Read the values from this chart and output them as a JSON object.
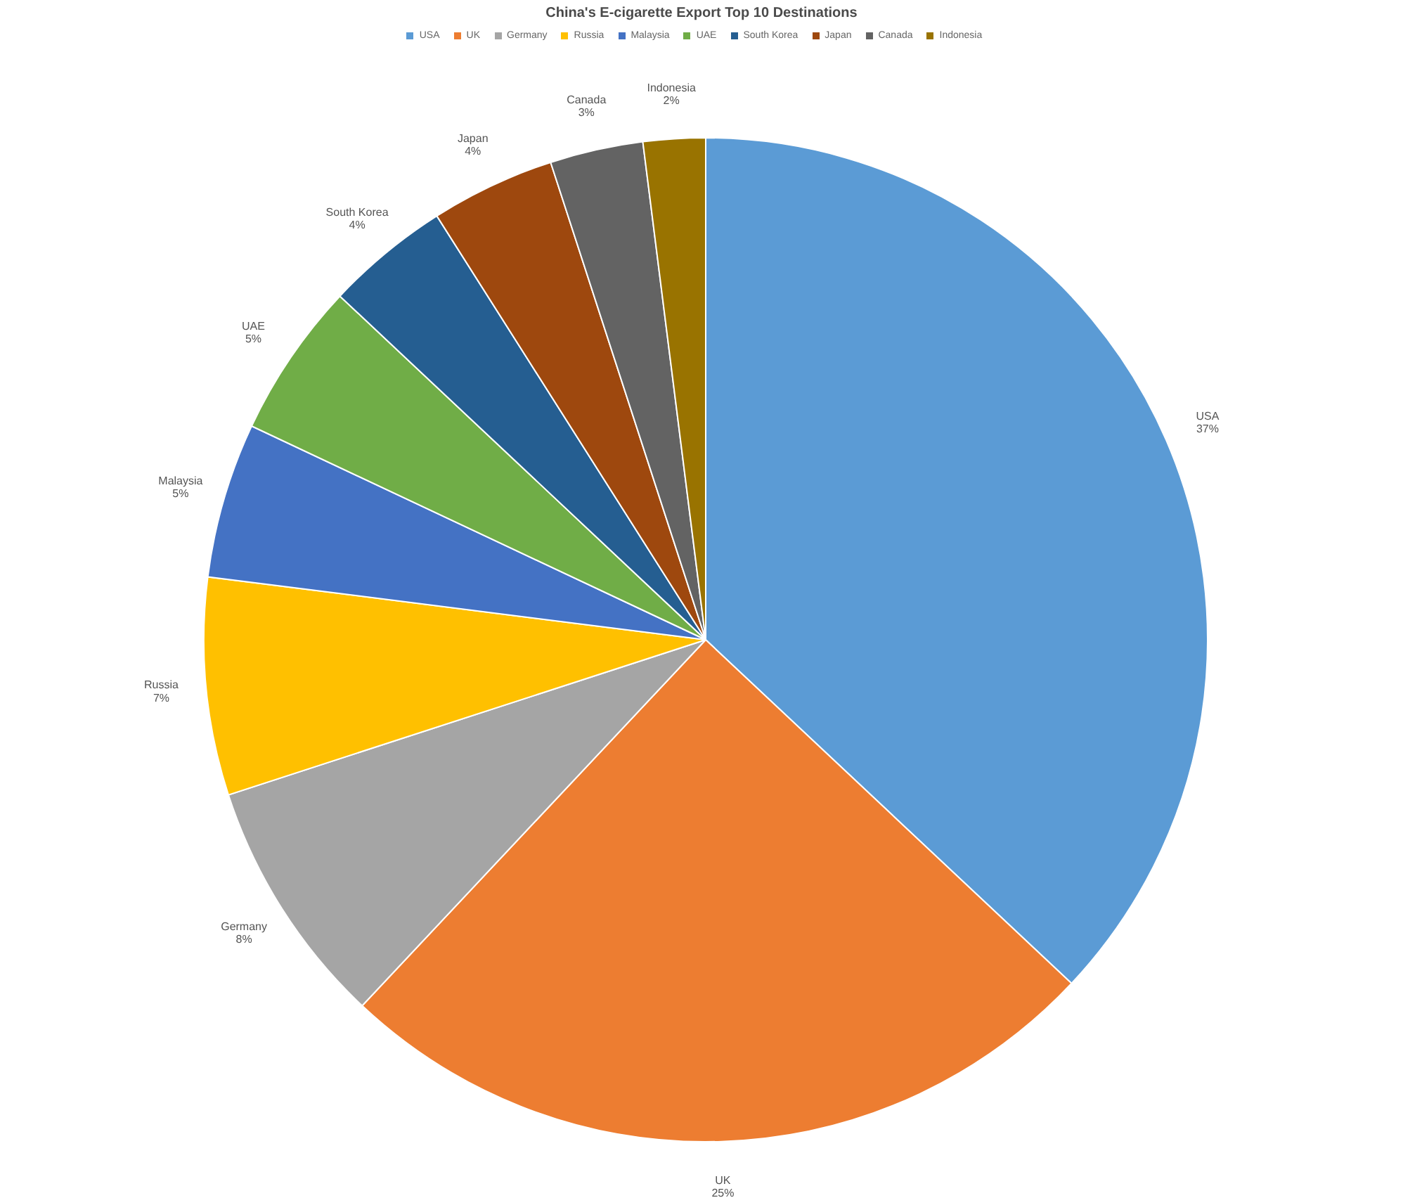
{
  "chart_data": {
    "type": "pie",
    "title": "China's E-cigarette Export Top 10 Destinations",
    "categories": [
      "USA",
      "UK",
      "Germany",
      "Russia",
      "Malaysia",
      "UAE",
      "South Korea",
      "Japan",
      "Canada",
      "Indonesia"
    ],
    "values": [
      37,
      25,
      8,
      7,
      5,
      5,
      4,
      4,
      3,
      2
    ],
    "value_labels": [
      "37%",
      "25%",
      "8%",
      "7%",
      "5%",
      "5%",
      "4%",
      "4%",
      "3%",
      "2%"
    ],
    "colors": [
      "#5b9bd5",
      "#ed7d31",
      "#a5a5a5",
      "#ffc000",
      "#4472c4",
      "#70ad47",
      "#255e91",
      "#9e480e",
      "#636363",
      "#997300"
    ],
    "legend": "top"
  }
}
